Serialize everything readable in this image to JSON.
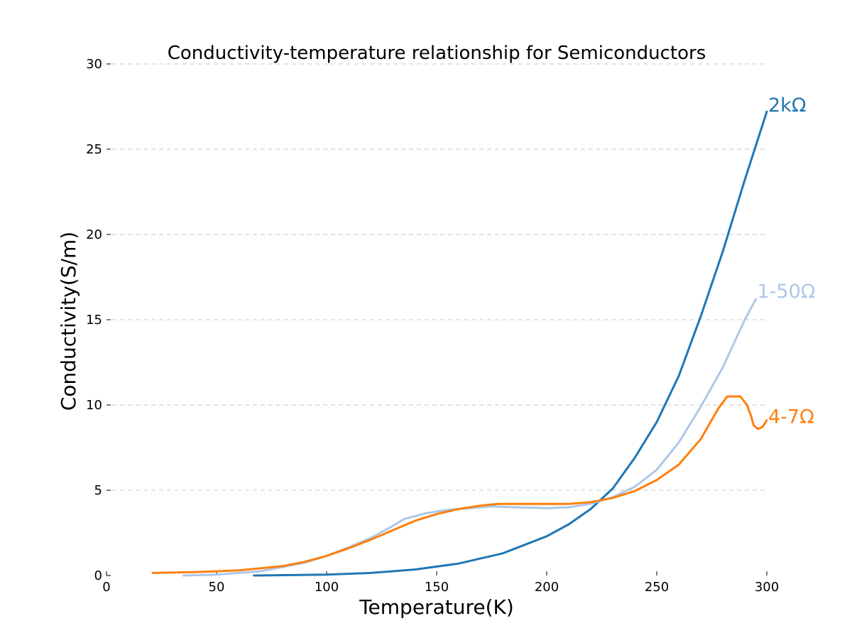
{
  "chart_data": {
    "type": "line",
    "title": "Conductivity-temperature relationship for Semiconductors",
    "xlabel": "Temperature(K)",
    "ylabel": "Conductivity(S/m)",
    "xlim": [
      0,
      300
    ],
    "ylim": [
      0,
      30
    ],
    "xticks": [
      "0",
      "50",
      "100",
      "150",
      "200",
      "250",
      "300"
    ],
    "yticks": [
      "0",
      "5",
      "10",
      "15",
      "20",
      "25",
      "30"
    ],
    "grid": "horizontal dashed",
    "legend": "labels at line ends",
    "series": [
      {
        "name": "2kΩ",
        "color": "#1f77b4",
        "x": [
          67,
          100,
          120,
          140,
          160,
          180,
          200,
          210,
          220,
          230,
          240,
          250,
          260,
          270,
          280,
          290,
          300
        ],
        "y": [
          0.0,
          0.05,
          0.15,
          0.35,
          0.7,
          1.3,
          2.3,
          3.0,
          3.9,
          5.1,
          6.9,
          9.0,
          11.7,
          15.2,
          19.0,
          23.2,
          27.2
        ]
      },
      {
        "name": "1-50Ω",
        "color": "#aec7e8",
        "x": [
          35,
          50,
          70,
          90,
          100,
          110,
          120,
          130,
          135,
          145,
          155,
          165,
          175,
          185,
          200,
          210,
          220,
          230,
          240,
          250,
          260,
          270,
          280,
          290,
          295
        ],
        "y": [
          0.0,
          0.05,
          0.25,
          0.75,
          1.15,
          1.65,
          2.2,
          2.9,
          3.3,
          3.65,
          3.85,
          3.95,
          4.05,
          4.0,
          3.95,
          4.0,
          4.2,
          4.6,
          5.2,
          6.2,
          7.8,
          9.9,
          12.2,
          15.0,
          16.2
        ]
      },
      {
        "name": "4-7Ω",
        "color": "#ff7f0e",
        "x": [
          21,
          40,
          60,
          80,
          90,
          100,
          110,
          120,
          130,
          140,
          150,
          160,
          170,
          178,
          190,
          200,
          210,
          220,
          230,
          240,
          250,
          260,
          270,
          278,
          282,
          285,
          288,
          291,
          293,
          294,
          296,
          298,
          300
        ],
        "y": [
          0.15,
          0.2,
          0.3,
          0.55,
          0.8,
          1.15,
          1.6,
          2.1,
          2.65,
          3.2,
          3.6,
          3.9,
          4.1,
          4.2,
          4.2,
          4.2,
          4.2,
          4.3,
          4.55,
          4.95,
          5.6,
          6.5,
          8.0,
          9.8,
          10.5,
          10.5,
          10.5,
          10.0,
          9.3,
          8.8,
          8.6,
          8.7,
          9.1
        ]
      }
    ]
  }
}
